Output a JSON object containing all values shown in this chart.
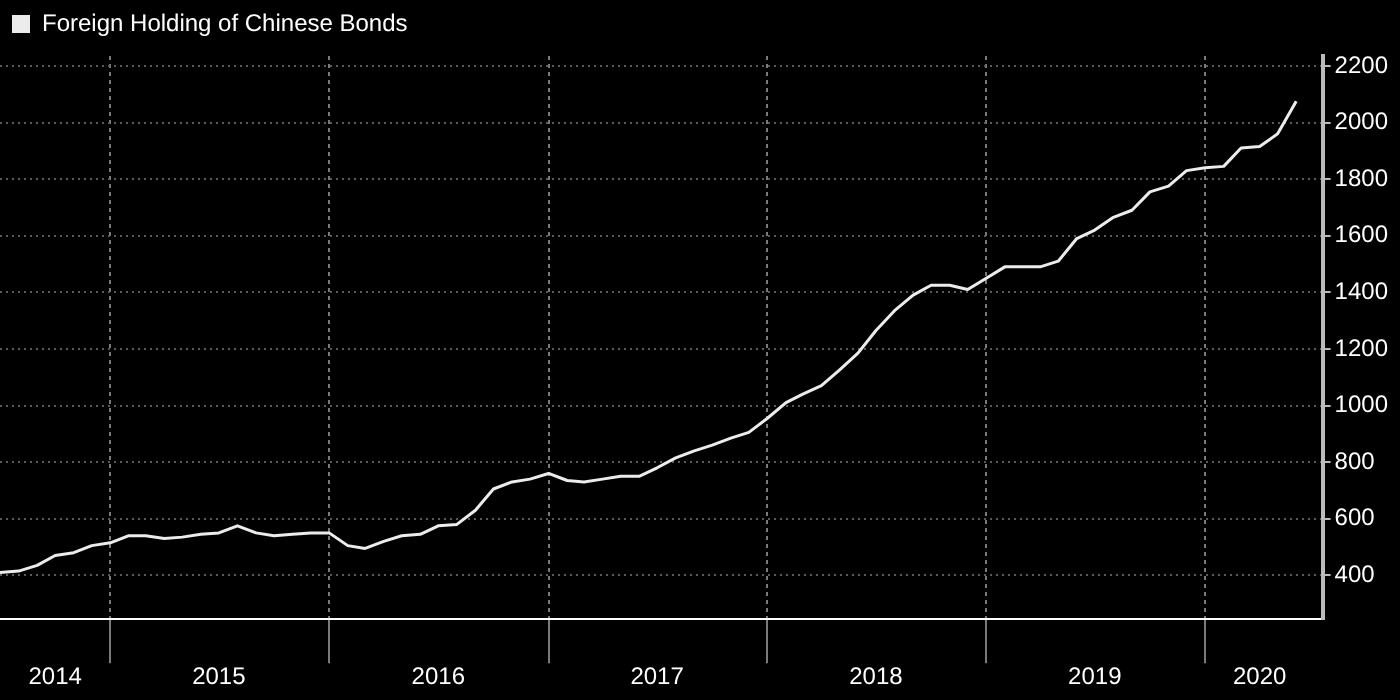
{
  "chart_data": {
    "type": "line",
    "x": [
      "2014-07",
      "2014-08",
      "2014-09",
      "2014-10",
      "2014-11",
      "2014-12",
      "2015-01",
      "2015-02",
      "2015-03",
      "2015-04",
      "2015-05",
      "2015-06",
      "2015-07",
      "2015-08",
      "2015-09",
      "2015-10",
      "2015-11",
      "2015-12",
      "2016-01",
      "2016-02",
      "2016-03",
      "2016-04",
      "2016-05",
      "2016-06",
      "2016-07",
      "2016-08",
      "2016-09",
      "2016-10",
      "2016-11",
      "2016-12",
      "2017-01",
      "2017-02",
      "2017-03",
      "2017-04",
      "2017-05",
      "2017-06",
      "2017-07",
      "2017-08",
      "2017-09",
      "2017-10",
      "2017-11",
      "2017-12",
      "2018-01",
      "2018-02",
      "2018-03",
      "2018-04",
      "2018-05",
      "2018-06",
      "2018-07",
      "2018-08",
      "2018-09",
      "2018-10",
      "2018-11",
      "2018-12",
      "2019-01",
      "2019-02",
      "2019-03",
      "2019-04",
      "2019-05",
      "2019-06",
      "2019-07",
      "2019-08",
      "2019-09",
      "2019-10",
      "2019-11",
      "2019-12",
      "2020-01",
      "2020-02",
      "2020-03",
      "2020-04",
      "2020-05",
      "2020-06"
    ],
    "series": [
      {
        "name": "Foreign Holding of Chinese Bonds",
        "color": "#ececec",
        "values": [
          410,
          415,
          435,
          470,
          480,
          505,
          515,
          540,
          540,
          530,
          535,
          545,
          550,
          575,
          550,
          540,
          545,
          550,
          550,
          505,
          495,
          520,
          540,
          545,
          575,
          580,
          630,
          705,
          730,
          740,
          760,
          735,
          730,
          740,
          750,
          750,
          780,
          815,
          840,
          860,
          885,
          905,
          955,
          1010,
          1040,
          1070,
          1125,
          1185,
          1265,
          1335,
          1390,
          1425,
          1425,
          1410,
          1450,
          1490,
          1490,
          1490,
          1510,
          1590,
          1620,
          1665,
          1690,
          1755,
          1775,
          1830,
          1840,
          1845,
          1910,
          1915,
          1960,
          2075
        ]
      }
    ],
    "xlim": [
      "2014-07",
      "2020-07-15"
    ],
    "xticks": [
      {
        "value": "2014-10",
        "label": "2014"
      },
      {
        "value": "2015-01",
        "label": null
      },
      {
        "value": "2015-07",
        "label": "2015"
      },
      {
        "value": "2016-01",
        "label": null
      },
      {
        "value": "2016-07",
        "label": "2016"
      },
      {
        "value": "2017-01",
        "label": null
      },
      {
        "value": "2017-07",
        "label": "2017"
      },
      {
        "value": "2018-01",
        "label": null
      },
      {
        "value": "2018-07",
        "label": "2018"
      },
      {
        "value": "2019-01",
        "label": null
      },
      {
        "value": "2019-07",
        "label": "2019"
      },
      {
        "value": "2020-01",
        "label": null
      },
      {
        "value": "2020-04",
        "label": "2020"
      }
    ],
    "ylim": [
      245,
      2235
    ],
    "yticks": [
      400,
      600,
      800,
      1000,
      1200,
      1400,
      1600,
      1800,
      2000,
      2200
    ],
    "grid": true,
    "legend": "top left",
    "marker": "none",
    "line_style": "solid"
  }
}
